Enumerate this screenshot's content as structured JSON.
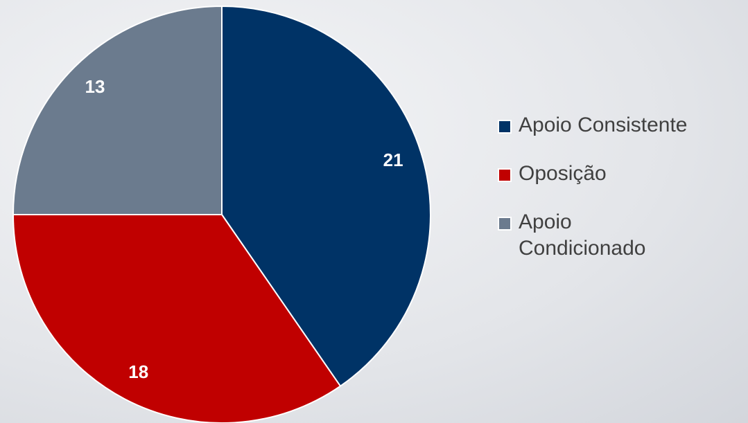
{
  "chart_data": {
    "type": "pie",
    "categories": [
      "Apoio Consistente",
      "Oposição",
      "Apoio Condicionado"
    ],
    "values": [
      21,
      18,
      13
    ],
    "colors": [
      "#003366",
      "#c00000",
      "#6b7b8e"
    ],
    "legend": "right"
  }
}
